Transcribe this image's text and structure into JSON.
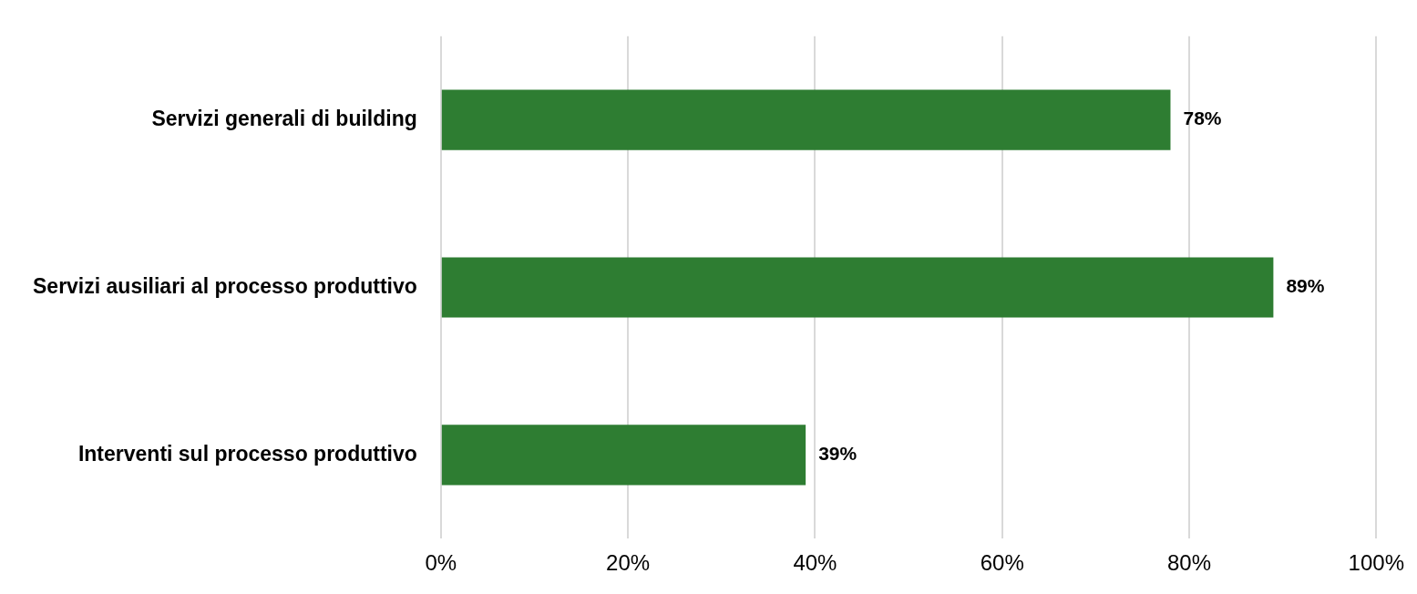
{
  "chart_data": {
    "type": "bar",
    "orientation": "horizontal",
    "categories": [
      "Servizi generali di building",
      "Servizi ausiliari al processo produttivo",
      "Interventi sul processo produttivo"
    ],
    "values": [
      78,
      89,
      39
    ],
    "color": "#2e7d32",
    "value_labels": [
      "78%",
      "89%",
      "39%"
    ],
    "xlim": [
      0,
      100
    ],
    "xticks": [
      {
        "value": 0,
        "label": "0%"
      },
      {
        "value": 20,
        "label": "20%"
      },
      {
        "value": 40,
        "label": "40%"
      },
      {
        "value": 60,
        "label": "60%"
      },
      {
        "value": 80,
        "label": "80%"
      },
      {
        "value": 100,
        "label": "100%"
      }
    ],
    "grid": "x",
    "legend": false
  }
}
